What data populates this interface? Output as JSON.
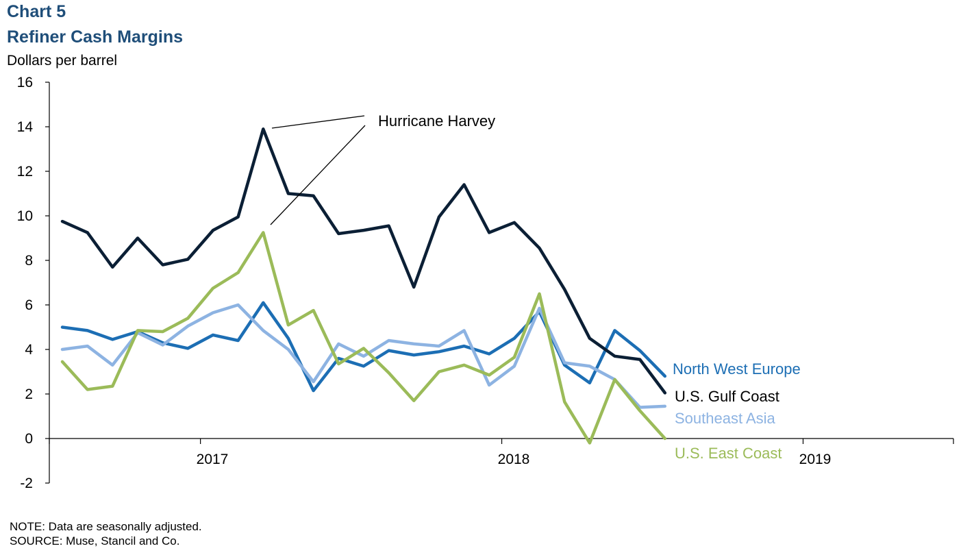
{
  "header": {
    "chart_number": "Chart 5",
    "title": "Refiner Cash Margins",
    "y_unit": "Dollars per barrel"
  },
  "footer": {
    "note": "NOTE: Data are seasonally adjusted.",
    "source": "SOURCE: Muse, Stancil and Co."
  },
  "chart_data": {
    "type": "line",
    "title": "Refiner Cash Margins",
    "ylabel": "Dollars per barrel",
    "ylim": [
      -2,
      16
    ],
    "yticks": [
      -2,
      0,
      2,
      4,
      6,
      8,
      10,
      12,
      14,
      16
    ],
    "x_period_labels": [
      "2017",
      "2018",
      "2019"
    ],
    "x": [
      "2016-07",
      "2016-08",
      "2016-09",
      "2016-10",
      "2016-11",
      "2016-12",
      "2017-01",
      "2017-02",
      "2017-03",
      "2017-04",
      "2017-05",
      "2017-06",
      "2017-07",
      "2017-08",
      "2017-09",
      "2017-10",
      "2017-11",
      "2017-12",
      "2018-01",
      "2018-02",
      "2018-03",
      "2018-04",
      "2018-05",
      "2018-06",
      "2018-07",
      "2018-08",
      "2018-09",
      "2018-10",
      "2018-11",
      "2018-12",
      "2019-01",
      "2019-02",
      "2019-03",
      "2019-04",
      "2019-05",
      "2019-06"
    ],
    "series": [
      {
        "name": "North West Europe",
        "color": "#1c6eb4",
        "values": [
          5.0,
          4.85,
          4.45,
          4.8,
          4.3,
          4.05,
          4.65,
          4.4,
          6.1,
          4.5,
          2.15,
          3.6,
          3.25,
          3.95,
          3.75,
          3.9,
          4.15,
          3.8,
          4.5,
          5.7,
          3.3,
          2.5,
          4.85,
          3.95,
          2.8,
          null,
          null,
          null,
          null,
          null,
          null,
          null,
          null,
          null,
          null,
          null
        ]
      },
      {
        "name": "U.S. Gulf Coast",
        "color": "#0b1f35",
        "values": [
          9.75,
          9.25,
          7.7,
          9.0,
          7.8,
          8.05,
          9.35,
          9.95,
          13.9,
          11.0,
          10.9,
          9.2,
          9.35,
          9.55,
          6.8,
          9.95,
          11.4,
          9.25,
          9.7,
          8.55,
          6.7,
          4.5,
          3.7,
          3.55,
          2.05,
          null,
          null,
          null,
          null,
          null,
          null,
          null,
          null,
          null,
          null,
          null
        ]
      },
      {
        "name": "Southeast Asia",
        "color": "#8db3e2",
        "values": [
          4.0,
          4.15,
          3.3,
          4.75,
          4.2,
          5.05,
          5.65,
          6.0,
          4.85,
          4.0,
          2.55,
          4.25,
          3.7,
          4.4,
          4.25,
          4.15,
          4.85,
          2.4,
          3.25,
          5.85,
          3.4,
          3.25,
          2.65,
          1.4,
          1.45,
          null,
          null,
          null,
          null,
          null,
          null,
          null,
          null,
          null,
          null,
          null
        ]
      },
      {
        "name": "U.S. East Coast",
        "color": "#9bbb59",
        "values": [
          3.45,
          2.2,
          2.35,
          4.85,
          4.8,
          5.4,
          6.75,
          7.45,
          9.25,
          5.1,
          5.75,
          3.35,
          4.05,
          2.95,
          1.7,
          3.0,
          3.3,
          2.85,
          3.65,
          6.5,
          1.65,
          -0.2,
          2.65,
          1.25,
          0.0,
          null,
          null,
          null,
          null,
          null,
          null,
          null,
          null,
          null,
          null,
          null
        ]
      }
    ],
    "annotations": [
      {
        "text": "Hurricane Harvey"
      }
    ],
    "grid": false,
    "legend": "inline labels at right end of lines"
  }
}
